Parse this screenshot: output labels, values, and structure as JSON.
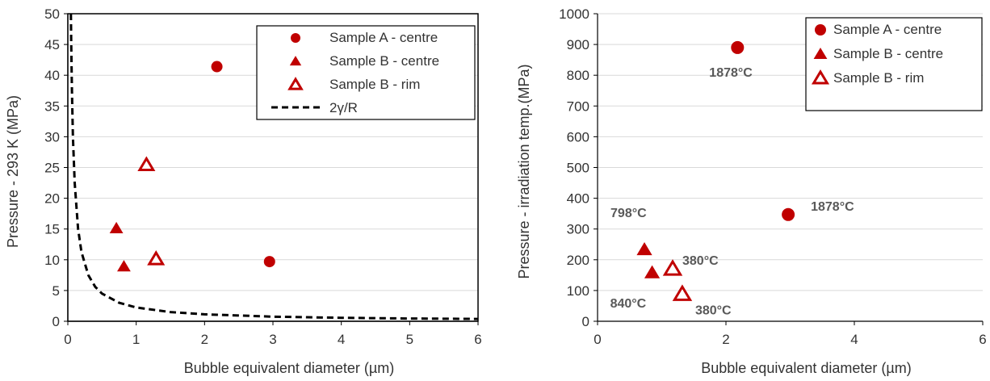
{
  "chart_data": [
    {
      "type": "scatter",
      "xlabel": "Bubble equivalent diameter (µm)",
      "ylabel": "Pressure - 293 K  (MPa)",
      "xlim": [
        0,
        6
      ],
      "ylim": [
        0,
        50
      ],
      "xticks": [
        0,
        1,
        2,
        3,
        4,
        5,
        6
      ],
      "yticks": [
        0,
        5,
        10,
        15,
        20,
        25,
        30,
        35,
        40,
        45,
        50
      ],
      "grid": "horizontal",
      "legend_position": "top-right",
      "series": [
        {
          "name": "Sample A - centre",
          "marker": "circle",
          "color": "#C00000",
          "points": [
            {
              "x": 2.18,
              "y": 41.4
            },
            {
              "x": 2.95,
              "y": 9.7
            }
          ]
        },
        {
          "name": "Sample B - centre",
          "marker": "triangle",
          "color": "#C00000",
          "points": [
            {
              "x": 0.71,
              "y": 15.1
            },
            {
              "x": 0.82,
              "y": 8.9
            }
          ]
        },
        {
          "name": "Sample B - rim",
          "marker": "triangle-open",
          "color": "#C00000",
          "points": [
            {
              "x": 1.15,
              "y": 25.4
            },
            {
              "x": 1.29,
              "y": 10.1
            }
          ]
        },
        {
          "name": "2γ/R",
          "marker": "none",
          "line": "dashed",
          "color": "#000000",
          "points": [
            {
              "x": 0.045,
              "y": 50
            },
            {
              "x": 0.05,
              "y": 45
            },
            {
              "x": 0.06,
              "y": 37.5
            },
            {
              "x": 0.075,
              "y": 30
            },
            {
              "x": 0.1,
              "y": 22.5
            },
            {
              "x": 0.15,
              "y": 15
            },
            {
              "x": 0.2,
              "y": 11.25
            },
            {
              "x": 0.3,
              "y": 7.5
            },
            {
              "x": 0.4,
              "y": 5.6
            },
            {
              "x": 0.5,
              "y": 4.5
            },
            {
              "x": 0.75,
              "y": 3.0
            },
            {
              "x": 1.0,
              "y": 2.25
            },
            {
              "x": 1.5,
              "y": 1.5
            },
            {
              "x": 2.0,
              "y": 1.13
            },
            {
              "x": 3.0,
              "y": 0.75
            },
            {
              "x": 4.0,
              "y": 0.56
            },
            {
              "x": 5.0,
              "y": 0.45
            },
            {
              "x": 6.0,
              "y": 0.38
            }
          ]
        }
      ]
    },
    {
      "type": "scatter",
      "xlabel": "Bubble equivalent diameter (µm)",
      "ylabel": "Pressure - irradiation temp.(MPa)",
      "xlim": [
        0,
        6
      ],
      "ylim": [
        0,
        1000
      ],
      "xticks": [
        0,
        2,
        4,
        6
      ],
      "yticks": [
        0,
        100,
        200,
        300,
        400,
        500,
        600,
        700,
        800,
        900,
        1000
      ],
      "grid": "horizontal",
      "legend_position": "top-right",
      "series": [
        {
          "name": "Sample A - centre",
          "marker": "circle",
          "color": "#C00000",
          "points": [
            {
              "x": 2.18,
              "y": 890,
              "label": "1878°C"
            },
            {
              "x": 2.97,
              "y": 347,
              "label": "1878°C"
            }
          ]
        },
        {
          "name": "Sample B - centre",
          "marker": "triangle",
          "color": "#C00000",
          "points": [
            {
              "x": 0.73,
              "y": 233,
              "label": "798°C"
            },
            {
              "x": 0.85,
              "y": 158,
              "label": "840°C"
            }
          ]
        },
        {
          "name": "Sample B - rim",
          "marker": "triangle-open",
          "color": "#C00000",
          "points": [
            {
              "x": 1.17,
              "y": 170,
              "label": "380°C"
            },
            {
              "x": 1.32,
              "y": 88,
              "label": "380°C"
            }
          ]
        }
      ]
    }
  ]
}
